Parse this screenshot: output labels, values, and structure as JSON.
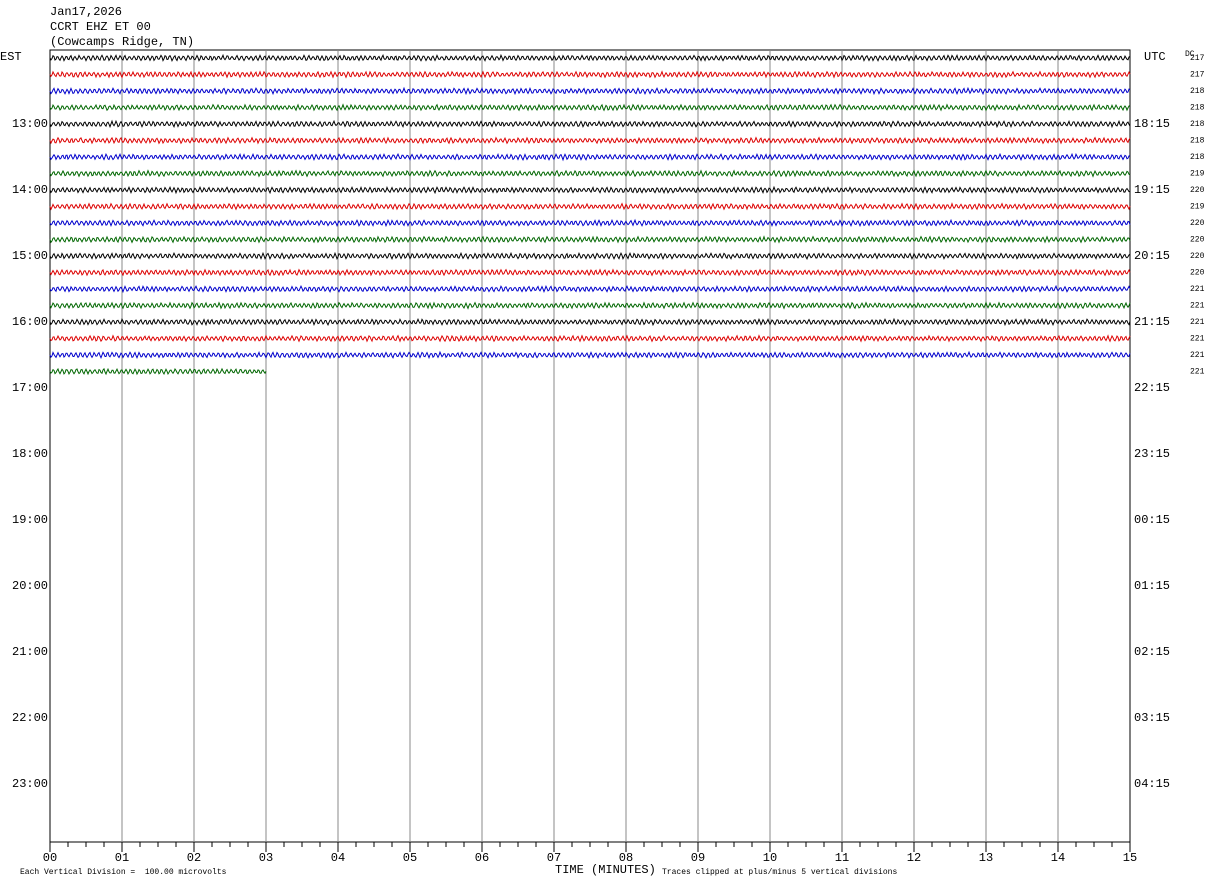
{
  "header": {
    "date": "Jan17,2026",
    "station": "CCRT EHZ ET 00",
    "location": "(Cowcamps Ridge, TN)"
  },
  "left_axis": {
    "title": "EST",
    "labels": [
      "13:00",
      "14:00",
      "15:00",
      "16:00",
      "17:00",
      "18:00",
      "19:00",
      "20:00",
      "21:00",
      "22:00",
      "23:00"
    ]
  },
  "right_axis": {
    "title": "UTC",
    "labels": [
      "18:15",
      "19:15",
      "20:15",
      "21:15",
      "22:15",
      "23:15",
      "00:15",
      "01:15",
      "02:15",
      "03:15",
      "04:15"
    ]
  },
  "dc": {
    "title": "DC",
    "values": [
      "217",
      "217",
      "218",
      "218",
      "218",
      "218",
      "218",
      "219",
      "220",
      "219",
      "220",
      "220",
      "220",
      "220",
      "221",
      "221",
      "221",
      "221",
      "221",
      "221"
    ]
  },
  "x_axis": {
    "title": "TIME (MINUTES)",
    "labels": [
      "00",
      "01",
      "02",
      "03",
      "04",
      "05",
      "06",
      "07",
      "08",
      "09",
      "10",
      "11",
      "12",
      "13",
      "14",
      "15"
    ]
  },
  "footer": {
    "scale": "Each Vertical Division =  100.00 microvolts",
    "clip": "Traces clipped at plus/minus 5 vertical divisions"
  }
}
